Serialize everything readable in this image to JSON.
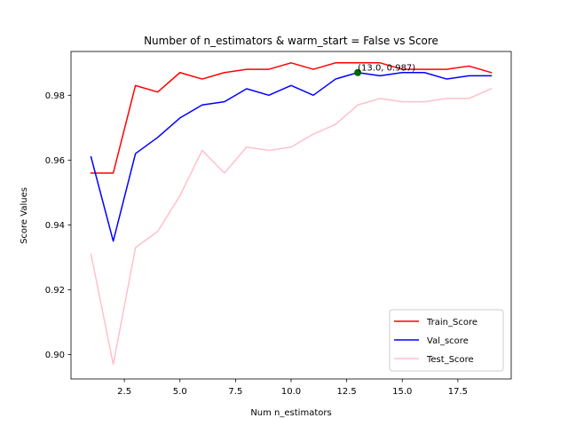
{
  "chart_data": {
    "type": "line",
    "title": "Number of n_estimators & warm_start = False vs Score",
    "xlabel": "Num n_estimators",
    "ylabel": "Score Values",
    "xlim": [
      0.1,
      19.9
    ],
    "ylim": [
      0.8925,
      0.9935
    ],
    "x": [
      1,
      2,
      3,
      4,
      5,
      6,
      7,
      8,
      9,
      10,
      11,
      12,
      13,
      14,
      15,
      16,
      17,
      18,
      19
    ],
    "x_ticks": [
      2.5,
      5.0,
      7.5,
      10.0,
      12.5,
      15.0,
      17.5
    ],
    "x_tick_labels": [
      "2.5",
      "5.0",
      "7.5",
      "10.0",
      "12.5",
      "15.0",
      "17.5"
    ],
    "y_ticks": [
      0.9,
      0.92,
      0.94,
      0.96,
      0.98
    ],
    "y_tick_labels": [
      "0.90",
      "0.92",
      "0.94",
      "0.96",
      "0.98"
    ],
    "grid": false,
    "legend_position": "lower-right",
    "series": [
      {
        "name": "Train_Score",
        "color": "#ff0000",
        "values": [
          0.956,
          0.956,
          0.983,
          0.981,
          0.987,
          0.985,
          0.987,
          0.988,
          0.988,
          0.99,
          0.988,
          0.99,
          0.99,
          0.99,
          0.988,
          0.988,
          0.988,
          0.989,
          0.987
        ]
      },
      {
        "name": "Val_score",
        "color": "#0000ff",
        "values": [
          0.961,
          0.935,
          0.962,
          0.967,
          0.973,
          0.977,
          0.978,
          0.982,
          0.98,
          0.983,
          0.98,
          0.985,
          0.987,
          0.986,
          0.987,
          0.987,
          0.985,
          0.986,
          0.986
        ]
      },
      {
        "name": "Test_Score",
        "color": "#ffc0cb",
        "values": [
          0.931,
          0.897,
          0.933,
          0.938,
          0.949,
          0.963,
          0.956,
          0.964,
          0.963,
          0.964,
          0.968,
          0.971,
          0.977,
          0.979,
          0.978,
          0.978,
          0.979,
          0.979,
          0.982
        ]
      }
    ],
    "annotation": {
      "text": "(13.0, 0.987)",
      "x": 13.0,
      "y": 0.987,
      "marker_color": "#006400"
    }
  }
}
